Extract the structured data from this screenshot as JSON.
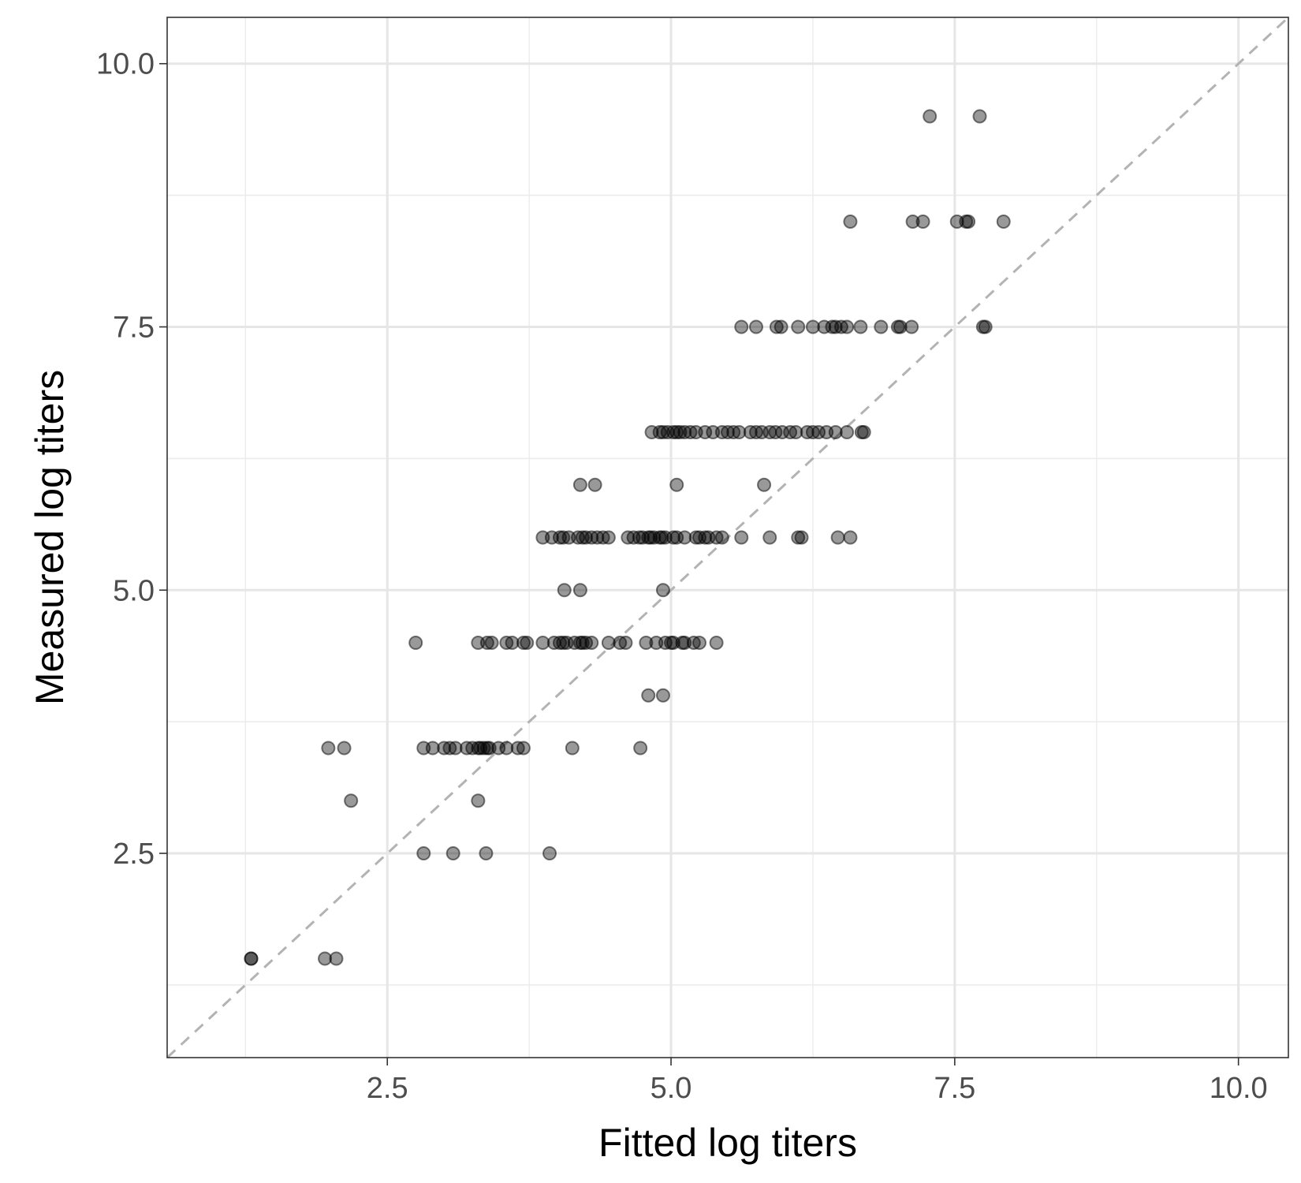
{
  "chart_data": {
    "type": "scatter",
    "title": "",
    "xlabel": "Fitted log titers",
    "ylabel": "Measured log titers",
    "xlim": [
      0.56,
      10.44
    ],
    "ylim": [
      0.56,
      10.44
    ],
    "x_ticks": [
      2.5,
      5.0,
      7.5,
      10.0
    ],
    "y_ticks": [
      2.5,
      5.0,
      7.5,
      10.0
    ],
    "x_tick_labels": [
      "2.5",
      "5.0",
      "7.5",
      "10.0"
    ],
    "y_tick_labels": [
      "2.5",
      "5.0",
      "7.5",
      "10.0"
    ],
    "grid": true,
    "reference_line": {
      "type": "identity",
      "style": "dashed",
      "color": "#b3b3b3"
    },
    "point_color": "#000000",
    "point_opacity": 0.4,
    "series": [
      {
        "points": [
          [
            1.3,
            1.5
          ],
          [
            1.3,
            1.5
          ],
          [
            1.95,
            1.5
          ],
          [
            2.05,
            1.5
          ],
          [
            2.82,
            2.5
          ],
          [
            3.08,
            2.5
          ],
          [
            3.37,
            2.5
          ],
          [
            3.93,
            2.5
          ],
          [
            2.18,
            3.0
          ],
          [
            3.3,
            3.0
          ],
          [
            1.98,
            3.5
          ],
          [
            2.12,
            3.5
          ],
          [
            2.82,
            3.5
          ],
          [
            2.9,
            3.5
          ],
          [
            3.0,
            3.5
          ],
          [
            3.05,
            3.5
          ],
          [
            3.1,
            3.5
          ],
          [
            3.2,
            3.5
          ],
          [
            3.25,
            3.5
          ],
          [
            3.3,
            3.5
          ],
          [
            3.32,
            3.5
          ],
          [
            3.35,
            3.5
          ],
          [
            3.38,
            3.5
          ],
          [
            3.4,
            3.5
          ],
          [
            3.48,
            3.5
          ],
          [
            3.55,
            3.5
          ],
          [
            3.65,
            3.5
          ],
          [
            3.7,
            3.5
          ],
          [
            4.13,
            3.5
          ],
          [
            4.73,
            3.5
          ],
          [
            4.8,
            4.0
          ],
          [
            4.93,
            4.0
          ],
          [
            2.75,
            4.5
          ],
          [
            3.3,
            4.5
          ],
          [
            3.38,
            4.5
          ],
          [
            3.42,
            4.5
          ],
          [
            3.55,
            4.5
          ],
          [
            3.6,
            4.5
          ],
          [
            3.7,
            4.5
          ],
          [
            3.73,
            4.5
          ],
          [
            3.87,
            4.5
          ],
          [
            3.97,
            4.5
          ],
          [
            4.02,
            4.5
          ],
          [
            4.05,
            4.5
          ],
          [
            4.08,
            4.5
          ],
          [
            4.15,
            4.5
          ],
          [
            4.2,
            4.5
          ],
          [
            4.22,
            4.5
          ],
          [
            4.25,
            4.5
          ],
          [
            4.3,
            4.5
          ],
          [
            4.45,
            4.5
          ],
          [
            4.55,
            4.5
          ],
          [
            4.6,
            4.5
          ],
          [
            4.78,
            4.5
          ],
          [
            4.87,
            4.5
          ],
          [
            4.95,
            4.5
          ],
          [
            5.0,
            4.5
          ],
          [
            5.02,
            4.5
          ],
          [
            5.1,
            4.5
          ],
          [
            5.12,
            4.5
          ],
          [
            5.2,
            4.5
          ],
          [
            5.25,
            4.5
          ],
          [
            5.4,
            4.5
          ],
          [
            4.06,
            5.0
          ],
          [
            4.2,
            5.0
          ],
          [
            4.93,
            5.0
          ],
          [
            3.87,
            5.5
          ],
          [
            3.95,
            5.5
          ],
          [
            4.02,
            5.5
          ],
          [
            4.05,
            5.5
          ],
          [
            4.1,
            5.5
          ],
          [
            4.18,
            5.5
          ],
          [
            4.22,
            5.5
          ],
          [
            4.25,
            5.5
          ],
          [
            4.3,
            5.5
          ],
          [
            4.35,
            5.5
          ],
          [
            4.4,
            5.5
          ],
          [
            4.45,
            5.5
          ],
          [
            4.62,
            5.5
          ],
          [
            4.67,
            5.5
          ],
          [
            4.72,
            5.5
          ],
          [
            4.75,
            5.5
          ],
          [
            4.8,
            5.5
          ],
          [
            4.82,
            5.5
          ],
          [
            4.85,
            5.5
          ],
          [
            4.9,
            5.5
          ],
          [
            4.92,
            5.5
          ],
          [
            4.95,
            5.5
          ],
          [
            5.02,
            5.5
          ],
          [
            5.05,
            5.5
          ],
          [
            5.12,
            5.5
          ],
          [
            5.22,
            5.5
          ],
          [
            5.25,
            5.5
          ],
          [
            5.3,
            5.5
          ],
          [
            5.33,
            5.5
          ],
          [
            5.4,
            5.5
          ],
          [
            5.45,
            5.5
          ],
          [
            5.62,
            5.5
          ],
          [
            5.87,
            5.5
          ],
          [
            6.12,
            5.5
          ],
          [
            6.15,
            5.5
          ],
          [
            6.47,
            5.5
          ],
          [
            6.58,
            5.5
          ],
          [
            4.2,
            6.0
          ],
          [
            4.33,
            6.0
          ],
          [
            5.05,
            6.0
          ],
          [
            5.82,
            6.0
          ],
          [
            4.83,
            6.5
          ],
          [
            4.9,
            6.5
          ],
          [
            4.93,
            6.5
          ],
          [
            4.97,
            6.5
          ],
          [
            5.02,
            6.5
          ],
          [
            5.05,
            6.5
          ],
          [
            5.08,
            6.5
          ],
          [
            5.12,
            6.5
          ],
          [
            5.17,
            6.5
          ],
          [
            5.22,
            6.5
          ],
          [
            5.3,
            6.5
          ],
          [
            5.37,
            6.5
          ],
          [
            5.45,
            6.5
          ],
          [
            5.5,
            6.5
          ],
          [
            5.55,
            6.5
          ],
          [
            5.6,
            6.5
          ],
          [
            5.7,
            6.5
          ],
          [
            5.75,
            6.5
          ],
          [
            5.8,
            6.5
          ],
          [
            5.87,
            6.5
          ],
          [
            5.92,
            6.5
          ],
          [
            5.98,
            6.5
          ],
          [
            6.05,
            6.5
          ],
          [
            6.1,
            6.5
          ],
          [
            6.2,
            6.5
          ],
          [
            6.25,
            6.5
          ],
          [
            6.3,
            6.5
          ],
          [
            6.37,
            6.5
          ],
          [
            6.45,
            6.5
          ],
          [
            6.55,
            6.5
          ],
          [
            6.68,
            6.5
          ],
          [
            6.7,
            6.5
          ],
          [
            5.62,
            7.5
          ],
          [
            5.75,
            7.5
          ],
          [
            5.93,
            7.5
          ],
          [
            5.97,
            7.5
          ],
          [
            6.12,
            7.5
          ],
          [
            6.25,
            7.5
          ],
          [
            6.35,
            7.5
          ],
          [
            6.42,
            7.5
          ],
          [
            6.45,
            7.5
          ],
          [
            6.5,
            7.5
          ],
          [
            6.55,
            7.5
          ],
          [
            6.67,
            7.5
          ],
          [
            6.85,
            7.5
          ],
          [
            7.0,
            7.5
          ],
          [
            7.02,
            7.5
          ],
          [
            7.12,
            7.5
          ],
          [
            7.75,
            7.5
          ],
          [
            7.77,
            7.5
          ],
          [
            6.58,
            8.5
          ],
          [
            7.13,
            8.5
          ],
          [
            7.22,
            8.5
          ],
          [
            7.52,
            8.5
          ],
          [
            7.6,
            8.5
          ],
          [
            7.62,
            8.5
          ],
          [
            7.93,
            8.5
          ],
          [
            7.28,
            9.5
          ],
          [
            7.72,
            9.5
          ]
        ]
      }
    ]
  }
}
